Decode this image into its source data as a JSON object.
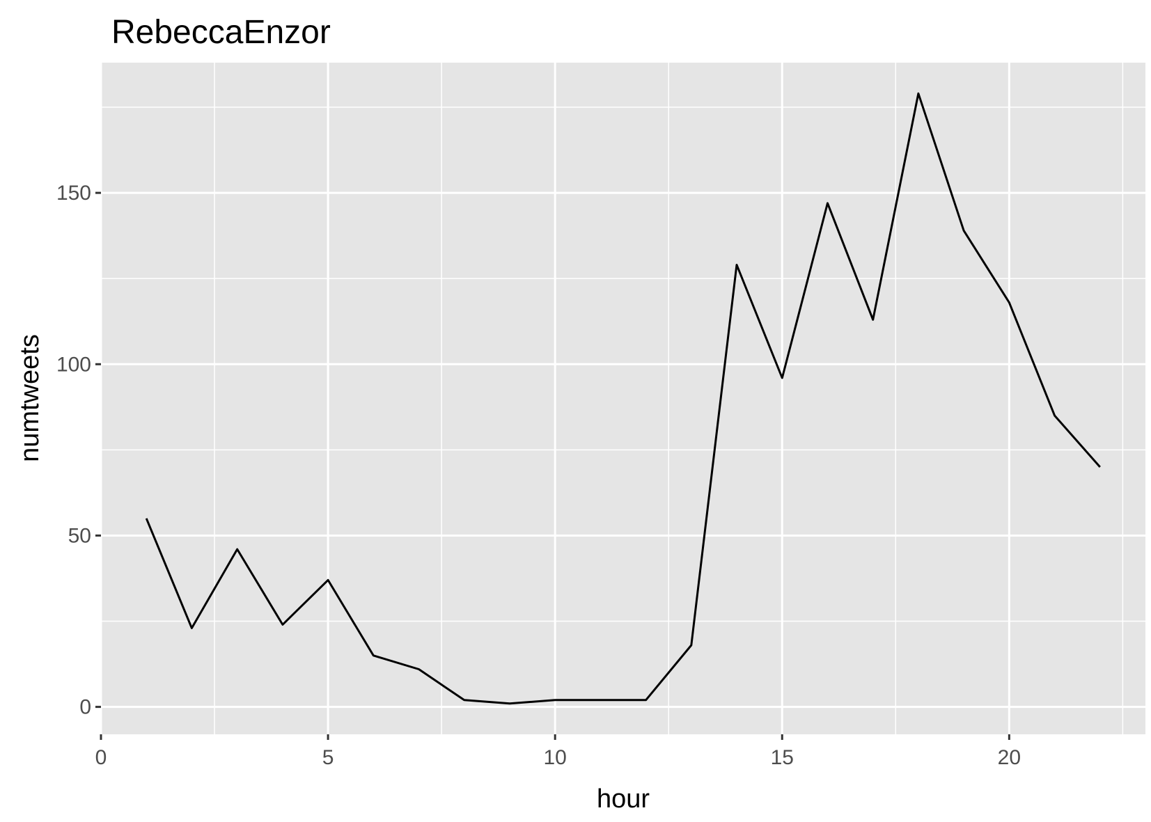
{
  "chart_data": {
    "type": "line",
    "title": "RebeccaEnzor",
    "xlabel": "hour",
    "ylabel": "numtweets",
    "xlim": [
      0,
      23
    ],
    "ylim": [
      -8,
      188
    ],
    "x_ticks": [
      0,
      5,
      10,
      15,
      20
    ],
    "x_tick_labels": [
      "0",
      "5",
      "10",
      "15",
      "20"
    ],
    "x_minor_ticks": [
      2.5,
      7.5,
      12.5,
      17.5,
      22.5
    ],
    "y_ticks": [
      0,
      50,
      100,
      150
    ],
    "y_tick_labels": [
      "0",
      "50",
      "100",
      "150"
    ],
    "y_minor_ticks": [
      25,
      75,
      125,
      175
    ],
    "grid": true,
    "colors": {
      "panel_background": "#e5e5e5",
      "grid": "#ffffff",
      "line": "#000000",
      "tick_text": "#4d4d4d",
      "text": "#000000"
    },
    "series": [
      {
        "x": [
          1,
          2,
          3,
          4,
          5,
          6,
          7,
          8,
          9,
          10,
          11,
          12,
          13,
          14,
          15,
          16,
          17,
          18,
          19,
          20,
          21,
          22
        ],
        "y": [
          55,
          23,
          46,
          24,
          37,
          15,
          11,
          2,
          1,
          2,
          2,
          2,
          18,
          129,
          96,
          147,
          113,
          179,
          139,
          118,
          85,
          70
        ]
      }
    ]
  }
}
